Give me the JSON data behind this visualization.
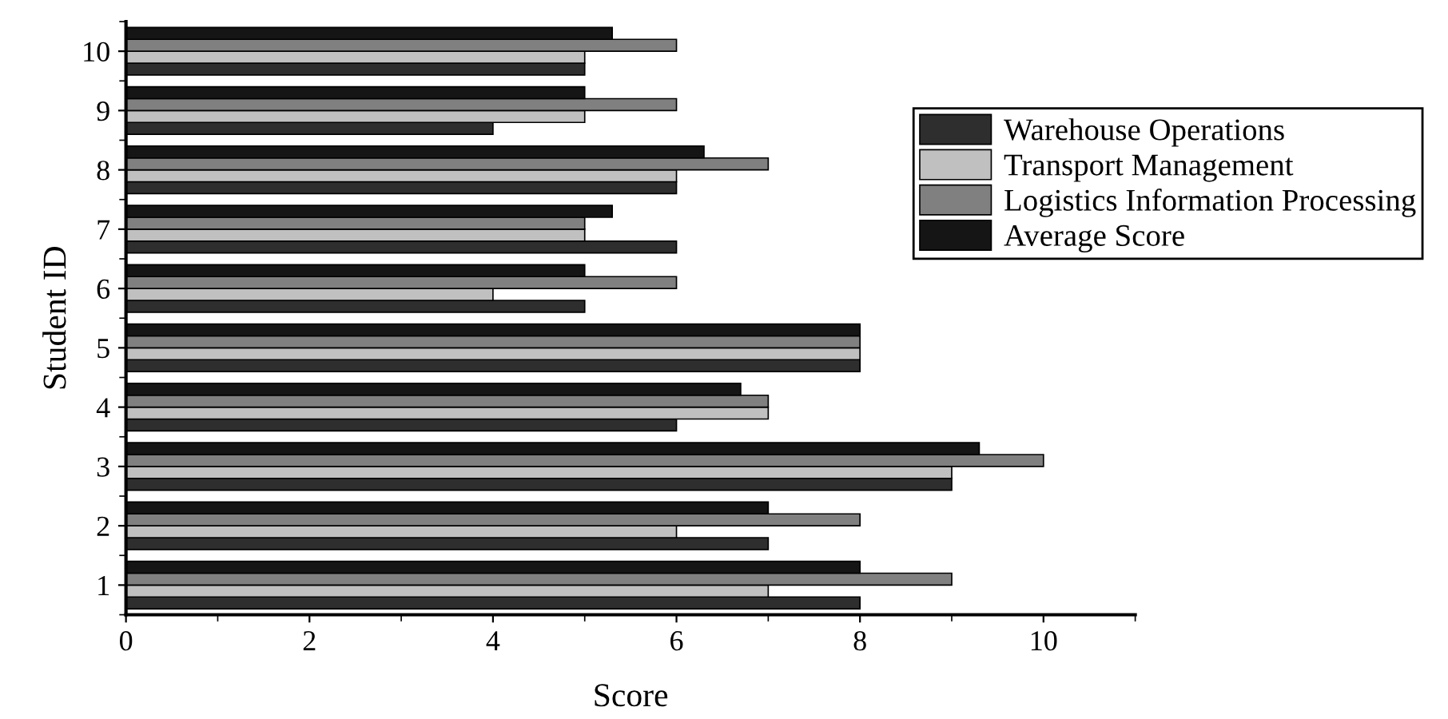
{
  "chart_data": {
    "type": "bar",
    "orientation": "horizontal",
    "xlabel": "Score",
    "ylabel": "Student ID",
    "categories": [
      "10",
      "9",
      "8",
      "7",
      "6",
      "5",
      "4",
      "3",
      "2",
      "1"
    ],
    "series": [
      {
        "name": "Warehouse Operations",
        "color": "#2e2e2e",
        "values": [
          5,
          4,
          6,
          6,
          5,
          8,
          6,
          9,
          7,
          8
        ]
      },
      {
        "name": "Transport Management",
        "color": "#c0c0c0",
        "values": [
          5,
          5,
          6,
          5,
          4,
          8,
          7,
          9,
          6,
          7
        ]
      },
      {
        "name": "Logistics Information Processing",
        "color": "#808080",
        "values": [
          6,
          6,
          7,
          5,
          6,
          8,
          7,
          10,
          8,
          9
        ]
      },
      {
        "name": "Average Score",
        "color": "#151515",
        "values": [
          5.3,
          5,
          6.3,
          5.3,
          5,
          8,
          6.7,
          9.3,
          7,
          8
        ]
      }
    ],
    "xlim": [
      0,
      11
    ],
    "xticks": [
      0,
      2,
      4,
      6,
      8,
      10
    ],
    "grid": false,
    "legend": "top right"
  }
}
